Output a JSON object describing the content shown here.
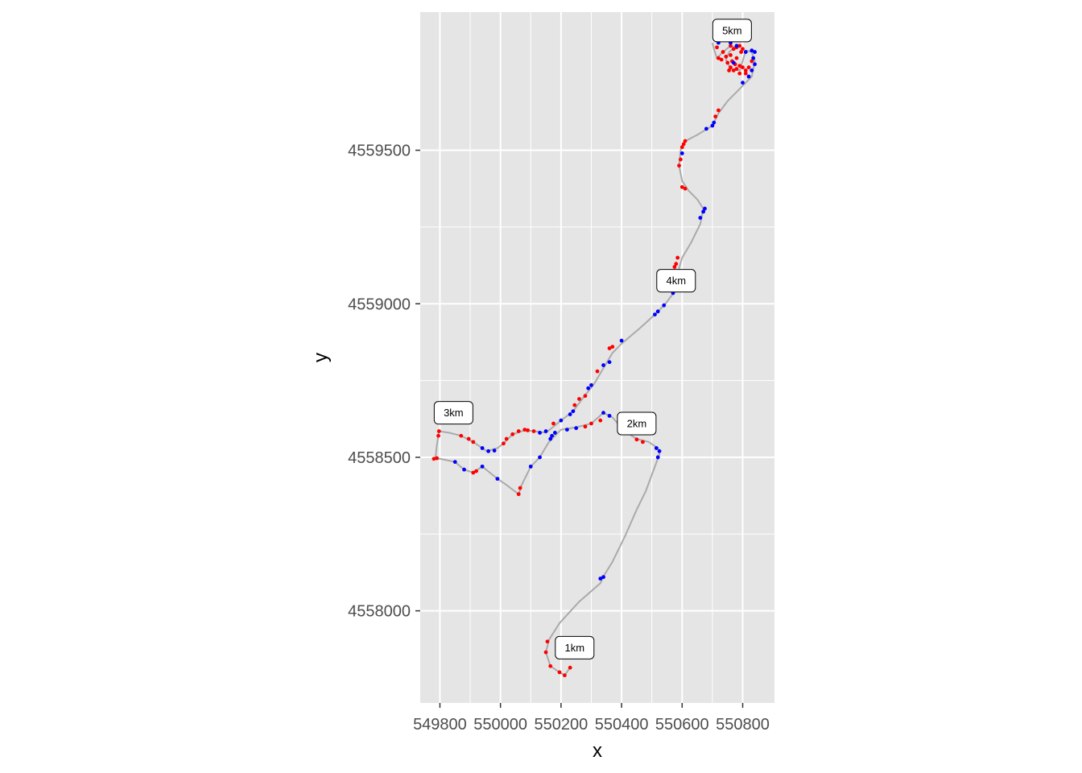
{
  "chart_data": {
    "type": "scatter",
    "title": "",
    "xlabel": "x",
    "ylabel": "y",
    "xlim": [
      549735,
      550905
    ],
    "ylim": [
      4557700,
      4559950
    ],
    "grid": true,
    "legend": "none",
    "x_ticks": [
      549800,
      550000,
      550200,
      550400,
      550600,
      550800
    ],
    "x_tick_labels": [
      "549800",
      "550000",
      "550200",
      "550400",
      "550600",
      "550800"
    ],
    "y_ticks": [
      4558000,
      4558500,
      4559000,
      4559500
    ],
    "y_tick_labels": [
      "4558000",
      "4558500",
      "4559000",
      "4559500"
    ],
    "colors": {
      "panel": "#e5e5e5",
      "grid": "#ffffff",
      "path": "#aaaaaa",
      "point_a": "#ff0000",
      "point_b": "#0000ff",
      "label_fill": "#ffffff",
      "label_border": "#000000"
    },
    "path": [
      [
        550230,
        4557815
      ],
      [
        550212,
        4557790
      ],
      [
        550195,
        4557800
      ],
      [
        550165,
        4557820
      ],
      [
        550150,
        4557865
      ],
      [
        550160,
        4557905
      ],
      [
        550195,
        4557960
      ],
      [
        550260,
        4558030
      ],
      [
        550330,
        4558090
      ],
      [
        550345,
        4558120
      ],
      [
        550370,
        4558160
      ],
      [
        550410,
        4558240
      ],
      [
        550450,
        4558330
      ],
      [
        550480,
        4558390
      ],
      [
        550510,
        4558470
      ],
      [
        550525,
        4558510
      ],
      [
        550520,
        4558530
      ],
      [
        550490,
        4558550
      ],
      [
        550450,
        4558560
      ],
      [
        550410,
        4558585
      ],
      [
        550370,
        4558630
      ],
      [
        550340,
        4558645
      ],
      [
        550300,
        4558610
      ],
      [
        550250,
        4558598
      ],
      [
        550200,
        4558590
      ],
      [
        550160,
        4558550
      ],
      [
        550130,
        4558500
      ],
      [
        550100,
        4558470
      ],
      [
        550070,
        4558410
      ],
      [
        550060,
        4558380
      ],
      [
        550020,
        4558410
      ],
      [
        549990,
        4558430
      ],
      [
        549940,
        4558470
      ],
      [
        549910,
        4558450
      ],
      [
        549880,
        4558460
      ],
      [
        549850,
        4558485
      ],
      [
        549800,
        4558495
      ],
      [
        549785,
        4558495
      ],
      [
        549790,
        4558540
      ],
      [
        549797,
        4558585
      ],
      [
        549830,
        4558580
      ],
      [
        549870,
        4558570
      ],
      [
        549910,
        4558550
      ],
      [
        549955,
        4558520
      ],
      [
        549990,
        4558530
      ],
      [
        550010,
        4558545
      ],
      [
        550040,
        4558575
      ],
      [
        550080,
        4558588
      ],
      [
        550110,
        4558585
      ],
      [
        550150,
        4558580
      ],
      [
        550200,
        4558620
      ],
      [
        550240,
        4558650
      ],
      [
        550270,
        4558690
      ],
      [
        550310,
        4558740
      ],
      [
        550340,
        4558790
      ],
      [
        550370,
        4558840
      ],
      [
        550400,
        4558870
      ],
      [
        550460,
        4558920
      ],
      [
        550510,
        4558965
      ],
      [
        550545,
        4559000
      ],
      [
        550575,
        4559040
      ],
      [
        550585,
        4559100
      ],
      [
        550600,
        4559150
      ],
      [
        550630,
        4559200
      ],
      [
        550660,
        4559260
      ],
      [
        550670,
        4559310
      ],
      [
        550650,
        4559340
      ],
      [
        550620,
        4559370
      ],
      [
        550600,
        4559400
      ],
      [
        550590,
        4559450
      ],
      [
        550595,
        4559500
      ],
      [
        550610,
        4559530
      ],
      [
        550650,
        4559550
      ],
      [
        550700,
        4559580
      ],
      [
        550720,
        4559620
      ],
      [
        550750,
        4559660
      ],
      [
        550790,
        4559700
      ],
      [
        550830,
        4559740
      ],
      [
        550840,
        4559790
      ],
      [
        550830,
        4559820
      ],
      [
        550810,
        4559825
      ],
      [
        550800,
        4559790
      ],
      [
        550790,
        4559760
      ],
      [
        550760,
        4559765
      ],
      [
        550745,
        4559795
      ],
      [
        550755,
        4559820
      ],
      [
        550775,
        4559835
      ],
      [
        550760,
        4559840
      ],
      [
        550735,
        4559820
      ],
      [
        550715,
        4559800
      ],
      [
        550705,
        4559830
      ],
      [
        550700,
        4559850
      ]
    ],
    "points_red": [
      [
        550230,
        4557815
      ],
      [
        550212,
        4557790
      ],
      [
        550195,
        4557800
      ],
      [
        550165,
        4557820
      ],
      [
        550150,
        4557865
      ],
      [
        550155,
        4557900
      ],
      [
        550410,
        4558580
      ],
      [
        550450,
        4558558
      ],
      [
        550470,
        4558550
      ],
      [
        550330,
        4558620
      ],
      [
        550300,
        4558610
      ],
      [
        550280,
        4558600
      ],
      [
        550060,
        4558380
      ],
      [
        550065,
        4558400
      ],
      [
        549910,
        4558450
      ],
      [
        549920,
        4558455
      ],
      [
        549780,
        4558495
      ],
      [
        549790,
        4558497
      ],
      [
        549795,
        4558570
      ],
      [
        549797,
        4558585
      ],
      [
        549870,
        4558570
      ],
      [
        549895,
        4558560
      ],
      [
        549910,
        4558550
      ],
      [
        550010,
        4558545
      ],
      [
        550020,
        4558560
      ],
      [
        550040,
        4558575
      ],
      [
        550060,
        4558585
      ],
      [
        550080,
        4558590
      ],
      [
        550090,
        4558588
      ],
      [
        550110,
        4558585
      ],
      [
        550175,
        4558610
      ],
      [
        550245,
        4558670
      ],
      [
        550260,
        4558690
      ],
      [
        550280,
        4558700
      ],
      [
        550320,
        4558780
      ],
      [
        550360,
        4558855
      ],
      [
        550370,
        4558860
      ],
      [
        550575,
        4559120
      ],
      [
        550580,
        4559130
      ],
      [
        550585,
        4559150
      ],
      [
        550590,
        4559450
      ],
      [
        550595,
        4559470
      ],
      [
        550600,
        4559380
      ],
      [
        550610,
        4559375
      ],
      [
        550600,
        4559510
      ],
      [
        550610,
        4559530
      ],
      [
        550605,
        4559520
      ],
      [
        550710,
        4559610
      ],
      [
        550720,
        4559630
      ],
      [
        550720,
        4559800
      ],
      [
        550730,
        4559795
      ],
      [
        550745,
        4559805
      ],
      [
        550760,
        4559810
      ],
      [
        550770,
        4559830
      ],
      [
        550780,
        4559835
      ],
      [
        550790,
        4559840
      ],
      [
        550800,
        4559830
      ],
      [
        550795,
        4559820
      ],
      [
        550765,
        4559790
      ],
      [
        550760,
        4559770
      ],
      [
        550770,
        4559760
      ],
      [
        550780,
        4559765
      ],
      [
        550790,
        4559775
      ],
      [
        550800,
        4559770
      ],
      [
        550810,
        4559760
      ],
      [
        550820,
        4559770
      ],
      [
        550830,
        4559790
      ],
      [
        550760,
        4559840
      ],
      [
        550780,
        4559800
      ],
      [
        550775,
        4559780
      ],
      [
        550750,
        4559785
      ],
      [
        550715,
        4559835
      ],
      [
        550735,
        4559820
      ],
      [
        550755,
        4559760
      ],
      [
        550790,
        4559750
      ],
      [
        550810,
        4559750
      ]
    ],
    "points_blue": [
      [
        550330,
        4558105
      ],
      [
        550340,
        4558110
      ],
      [
        550520,
        4558500
      ],
      [
        550525,
        4558520
      ],
      [
        550515,
        4558530
      ],
      [
        550340,
        4558645
      ],
      [
        550360,
        4558635
      ],
      [
        550250,
        4558595
      ],
      [
        550220,
        4558590
      ],
      [
        550180,
        4558580
      ],
      [
        550170,
        4558570
      ],
      [
        550165,
        4558560
      ],
      [
        550130,
        4558500
      ],
      [
        550100,
        4558470
      ],
      [
        549990,
        4558430
      ],
      [
        549940,
        4558470
      ],
      [
        549880,
        4558460
      ],
      [
        549850,
        4558485
      ],
      [
        549960,
        4558520
      ],
      [
        549980,
        4558522
      ],
      [
        549940,
        4558530
      ],
      [
        550130,
        4558580
      ],
      [
        550150,
        4558585
      ],
      [
        550200,
        4558620
      ],
      [
        550230,
        4558640
      ],
      [
        550240,
        4558650
      ],
      [
        550290,
        4558725
      ],
      [
        550300,
        4558735
      ],
      [
        550340,
        4558800
      ],
      [
        550360,
        4558810
      ],
      [
        550400,
        4558880
      ],
      [
        550510,
        4558965
      ],
      [
        550520,
        4558975
      ],
      [
        550540,
        4558995
      ],
      [
        550570,
        4559035
      ],
      [
        550660,
        4559280
      ],
      [
        550670,
        4559300
      ],
      [
        550675,
        4559310
      ],
      [
        550600,
        4559490
      ],
      [
        550680,
        4559570
      ],
      [
        550700,
        4559580
      ],
      [
        550705,
        4559590
      ],
      [
        550800,
        4559720
      ],
      [
        550820,
        4559740
      ],
      [
        550830,
        4559760
      ],
      [
        550840,
        4559780
      ],
      [
        550835,
        4559800
      ],
      [
        550840,
        4559820
      ],
      [
        550830,
        4559825
      ],
      [
        550810,
        4559820
      ],
      [
        550770,
        4559785
      ],
      [
        550720,
        4559850
      ],
      [
        550760,
        4559850
      ],
      [
        550780,
        4559840
      ]
    ],
    "annotations": [
      {
        "text": "1km",
        "x": 550245,
        "y": 4557880
      },
      {
        "text": "2km",
        "x": 550450,
        "y": 4558610
      },
      {
        "text": "3km",
        "x": 549845,
        "y": 4558645
      },
      {
        "text": "4km",
        "x": 550580,
        "y": 4559075
      },
      {
        "text": "5km",
        "x": 550765,
        "y": 4559890
      }
    ]
  }
}
